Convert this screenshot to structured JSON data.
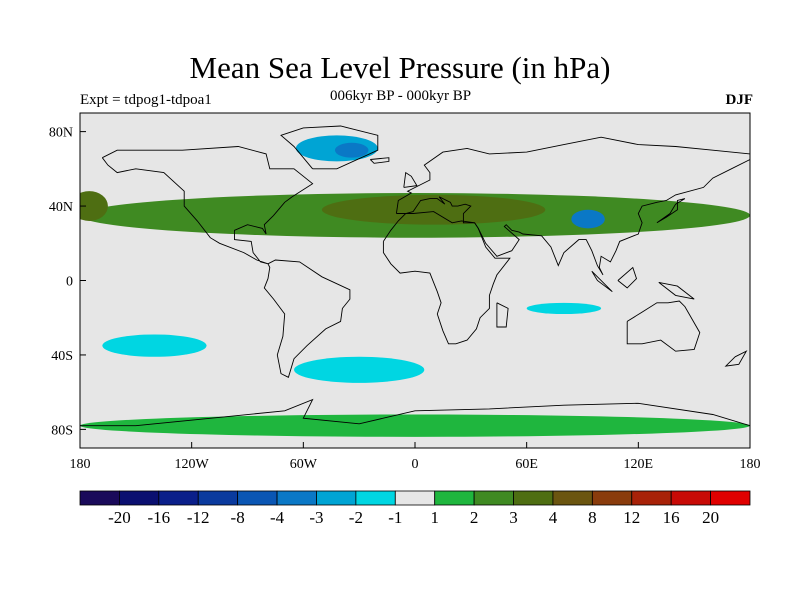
{
  "title": "Mean Sea Level Pressure (in hPa)",
  "experiment": "Expt = tdpog1-tdpoa1",
  "period": "006kyr BP - 000kyr BP",
  "season": "DJF",
  "chart_data": {
    "type": "heatmap",
    "variable": "Mean Sea Level Pressure anomaly",
    "units": "hPa",
    "projection": "cylindrical equidistant",
    "lon_range": [
      -180,
      180
    ],
    "lat_range": [
      -90,
      90
    ],
    "x_ticks": [
      {
        "lon": -180,
        "label": "180"
      },
      {
        "lon": -120,
        "label": "120W"
      },
      {
        "lon": -60,
        "label": "60W"
      },
      {
        "lon": 0,
        "label": "0"
      },
      {
        "lon": 60,
        "label": "60E"
      },
      {
        "lon": 120,
        "label": "120E"
      },
      {
        "lon": 180,
        "label": "180"
      }
    ],
    "y_ticks": [
      {
        "lat": 80,
        "label": "80N"
      },
      {
        "lat": 40,
        "label": "40N"
      },
      {
        "lat": 0,
        "label": "0"
      },
      {
        "lat": -40,
        "label": "40S"
      },
      {
        "lat": -80,
        "label": "80S"
      }
    ],
    "colorbar": {
      "labels": [
        "-20",
        "-16",
        "-12",
        "-8",
        "-4",
        "-3",
        "-2",
        "-1",
        "1",
        "2",
        "3",
        "4",
        "8",
        "12",
        "16",
        "20"
      ],
      "colors": [
        "#1a0a5a",
        "#0a0f70",
        "#0a1f8a",
        "#0a3a9e",
        "#0a56b4",
        "#0a78c6",
        "#00a4d4",
        "#00d6e2",
        "#e6e6e6",
        "#1fb63e",
        "#3f8a22",
        "#4e6e12",
        "#6b5510",
        "#8a3c0c",
        "#a82208",
        "#c80a06",
        "#e00000"
      ]
    },
    "features": [
      {
        "name": "North Atlantic negative anomaly",
        "value": -3,
        "lon": -42,
        "lat": 71,
        "rx": 22,
        "ry": 7
      },
      {
        "name": "North Atlantic core",
        "value": -4,
        "lon": -34,
        "lat": 70,
        "rx": 9,
        "ry": 4
      },
      {
        "name": "Tibetan Plateau low",
        "value": -4,
        "lon": 93,
        "lat": 33,
        "rx": 9,
        "ry": 5
      },
      {
        "name": "Southern Ocean Pacific low",
        "value": -1.5,
        "lon": -140,
        "lat": -35,
        "rx": 28,
        "ry": 6
      },
      {
        "name": "South Atlantic low",
        "value": -1.5,
        "lon": -30,
        "lat": -48,
        "rx": 35,
        "ry": 7
      },
      {
        "name": "Indian Ocean low",
        "value": -1.5,
        "lon": 80,
        "lat": -15,
        "rx": 20,
        "ry": 3
      },
      {
        "name": "Subtropical high band",
        "value": 2,
        "lon": 0,
        "lat": 35,
        "rx": 180,
        "ry": 12
      },
      {
        "name": "North Atlantic-Eurasia high",
        "value": 3,
        "lon": 10,
        "lat": 38,
        "rx": 60,
        "ry": 8
      },
      {
        "name": "North Pacific high",
        "value": 3,
        "lon": -175,
        "lat": 40,
        "rx": 10,
        "ry": 8
      },
      {
        "name": "Antarctic margin high",
        "value": 1.5,
        "lon": 0,
        "lat": -78,
        "rx": 180,
        "ry": 6
      }
    ]
  }
}
